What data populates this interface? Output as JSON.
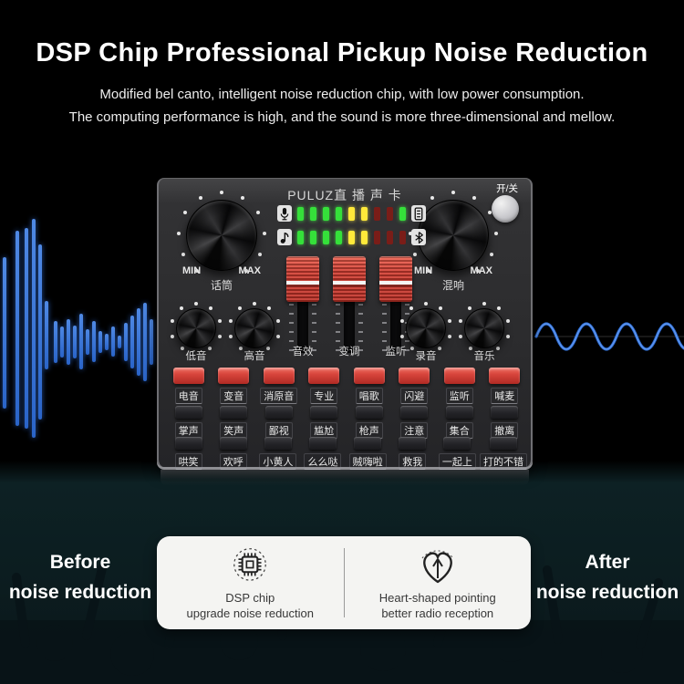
{
  "header": {
    "title": "DSP Chip Professional Pickup Noise Reduction",
    "subtitle1": "Modified bel canto, intelligent noise reduction chip, with low power consumption.",
    "subtitle2": "The computing performance is high, and the sound is more three-dimensional and mellow."
  },
  "device": {
    "brand": "PULUZ直 播 声 卡",
    "power_label": "开/关",
    "min_label": "MIN",
    "max_label": "MAX",
    "mic_knob_label": "话筒",
    "reverb_knob_label": "混响",
    "knob_labels": {
      "bass": "低音",
      "treble": "高音",
      "record": "录音",
      "music": "音乐"
    },
    "fader_labels": [
      "音效",
      "变调",
      "监听"
    ],
    "led_rows": [
      {
        "left_icon": "microphone-icon",
        "pattern": [
          "g",
          "g",
          "g",
          "g",
          "y",
          "y",
          "rd",
          "rd",
          "g"
        ],
        "right_icon": "battery-icon"
      },
      {
        "left_icon": "music-note-icon",
        "pattern": [
          "g",
          "g",
          "g",
          "g",
          "y",
          "y",
          "rd",
          "rd",
          "rd"
        ],
        "right_icon": "bluetooth-icon"
      }
    ],
    "fx_rows": [
      {
        "style": "red",
        "labels": [
          "电音",
          "变音",
          "消原音",
          "专业",
          "唱歌",
          "闪避",
          "监听",
          "喊麦"
        ]
      },
      {
        "style": "dark",
        "labels": [
          "掌声",
          "笑声",
          "鄙视",
          "尴尬",
          "枪声",
          "注意",
          "集合",
          "撤离"
        ]
      },
      {
        "style": "dark",
        "labels": [
          "哄笑",
          "欢呼",
          "小黄人",
          "么么哒",
          "贼嗨啦",
          "救我",
          "一起上",
          "打的不错"
        ]
      }
    ]
  },
  "footer": {
    "before_line1": "Before",
    "before_line2": "noise reduction",
    "after_line1": "After",
    "after_line2": "noise reduction",
    "features": [
      {
        "icon": "dsp-chip-icon",
        "title": "DSP chip",
        "desc": "upgrade noise reduction"
      },
      {
        "icon": "heart-pointing-icon",
        "title": "Heart-shaped pointing",
        "desc": "better radio reception"
      }
    ]
  },
  "colors": {
    "accent_red": "#d8423a",
    "led_green": "#35e03a",
    "led_yellow": "#ffe93a",
    "led_red_dim": "#7a1d18",
    "wave_blue": "#2e6fd8",
    "crowd_teal": "#0c1d20"
  },
  "decor": {
    "left_wave_bars": [
      [
        3,
        282,
        166
      ],
      [
        17,
        253,
        214
      ],
      [
        27,
        250,
        220
      ],
      [
        35,
        240,
        240
      ],
      [
        42,
        268,
        192
      ],
      [
        49,
        330,
        75
      ],
      [
        59,
        352,
        46
      ],
      [
        66,
        358,
        34
      ],
      [
        73,
        350,
        50
      ],
      [
        80,
        357,
        36
      ],
      [
        87,
        344,
        61
      ],
      [
        94,
        361,
        28
      ],
      [
        101,
        352,
        45
      ],
      [
        108,
        363,
        24
      ],
      [
        115,
        366,
        18
      ],
      [
        122,
        358,
        33
      ],
      [
        129,
        368,
        14
      ],
      [
        136,
        354,
        42
      ],
      [
        143,
        346,
        58
      ],
      [
        150,
        338,
        74
      ],
      [
        157,
        332,
        86
      ],
      [
        164,
        350,
        50
      ]
    ]
  }
}
